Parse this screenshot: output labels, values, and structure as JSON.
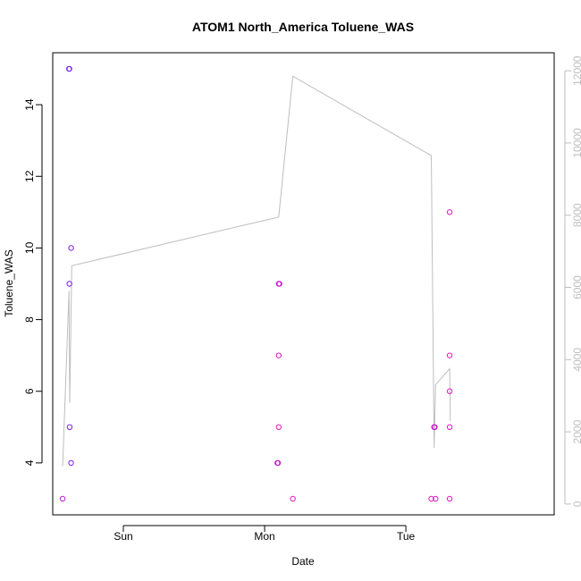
{
  "chart_data": {
    "type": "scatter",
    "title": "ATOM1 North_America Toluene_WAS",
    "xlabel": "Date",
    "ylabel": "Toluene_WAS",
    "x_tick_labels": [
      "Sun",
      "Mon",
      "Tue"
    ],
    "x_tick_positions": [
      0.5,
      1.5,
      2.5
    ],
    "xlim": [
      0.0,
      3.55
    ],
    "ylim": [
      2.55,
      15.45
    ],
    "y_ticks": [
      4,
      6,
      8,
      10,
      12,
      14
    ],
    "y2lim": [
      -300,
      12500
    ],
    "y2_ticks": [
      0,
      2000,
      4000,
      6000,
      8000,
      10000,
      12000
    ],
    "grid": false,
    "legend": "none",
    "colors": {
      "points_purple": "#7a1ff0",
      "points_violet": "#b31ad9",
      "points_magenta": "#e01ac0",
      "line": "#bebebe",
      "axis": "#000000",
      "right_axis": "#bebebe"
    },
    "series": [
      {
        "type": "scatter",
        "axis": "left",
        "points": [
          {
            "x": 0.07,
            "y": 3,
            "color": "#b31ad9"
          },
          {
            "x": 0.115,
            "y": 15,
            "color": "#7a1ff0"
          },
          {
            "x": 0.118,
            "y": 15,
            "color": "#7a1ff0"
          },
          {
            "x": 0.118,
            "y": 9,
            "color": "#7a1ff0"
          },
          {
            "x": 0.12,
            "y": 5,
            "color": "#7a1ff0"
          },
          {
            "x": 0.13,
            "y": 10,
            "color": "#7a1ff0"
          },
          {
            "x": 0.13,
            "y": 4,
            "color": "#7a1ff0"
          },
          {
            "x": 1.59,
            "y": 4,
            "color": "#c81acc"
          },
          {
            "x": 1.595,
            "y": 4,
            "color": "#c81acc"
          },
          {
            "x": 1.6,
            "y": 9,
            "color": "#c81acc"
          },
          {
            "x": 1.605,
            "y": 9,
            "color": "#c81acc"
          },
          {
            "x": 1.6,
            "y": 7,
            "color": "#e01ac0"
          },
          {
            "x": 1.6,
            "y": 5,
            "color": "#e01ac0"
          },
          {
            "x": 1.7,
            "y": 3,
            "color": "#e01ac0"
          },
          {
            "x": 2.68,
            "y": 3,
            "color": "#e01ac0"
          },
          {
            "x": 2.71,
            "y": 3,
            "color": "#e01ac0"
          },
          {
            "x": 2.7,
            "y": 5,
            "color": "#c81acc"
          },
          {
            "x": 2.705,
            "y": 5,
            "color": "#c81acc"
          },
          {
            "x": 2.81,
            "y": 11,
            "color": "#e01ac0"
          },
          {
            "x": 2.81,
            "y": 7,
            "color": "#e01ac0"
          },
          {
            "x": 2.81,
            "y": 6,
            "color": "#e01ac0"
          },
          {
            "x": 2.81,
            "y": 5,
            "color": "#e01ac0"
          },
          {
            "x": 2.81,
            "y": 3,
            "color": "#e01ac0"
          }
        ]
      },
      {
        "type": "line",
        "axis": "right",
        "color": "#bebebe",
        "points": [
          {
            "x": 0.07,
            "y": 1050
          },
          {
            "x": 0.115,
            "y": 5900
          },
          {
            "x": 0.12,
            "y": 2800
          },
          {
            "x": 0.135,
            "y": 6600
          },
          {
            "x": 1.6,
            "y": 7950
          },
          {
            "x": 1.7,
            "y": 11850
          },
          {
            "x": 2.68,
            "y": 9650
          },
          {
            "x": 2.7,
            "y": 1550
          },
          {
            "x": 2.71,
            "y": 3300
          },
          {
            "x": 2.81,
            "y": 3750
          },
          {
            "x": 2.815,
            "y": 2300
          }
        ]
      }
    ]
  }
}
